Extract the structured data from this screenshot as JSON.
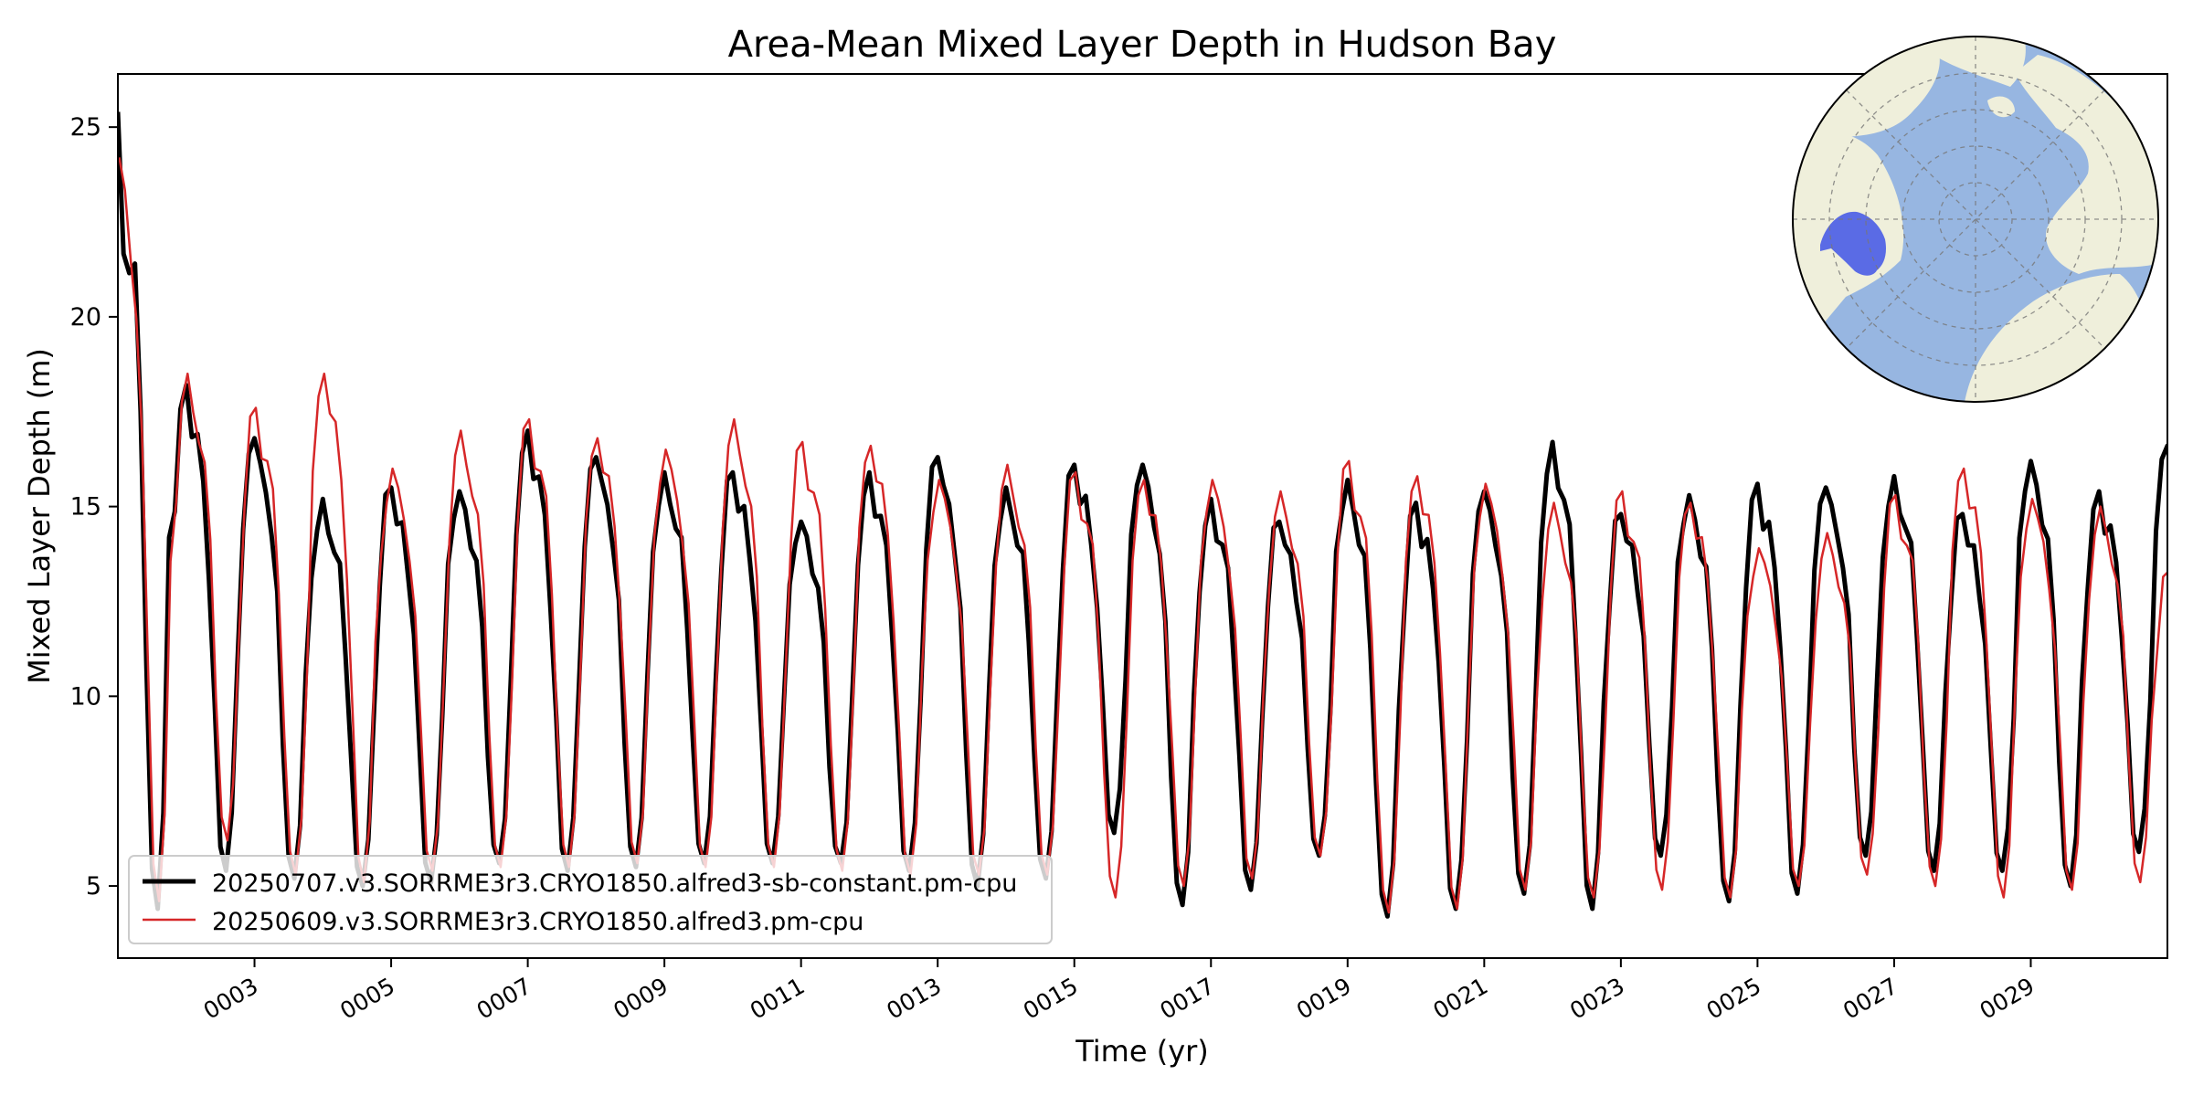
{
  "chart_data": {
    "type": "line",
    "title": "Area-Mean Mixed Layer Depth in Hudson Bay",
    "xlabel": "Time (yr)",
    "ylabel": "Mixed Layer Depth (m)",
    "xlim": [
      1,
      31
    ],
    "ylim": [
      3.1,
      26.4
    ],
    "x_ticks": [
      3,
      5,
      7,
      9,
      11,
      13,
      15,
      17,
      19,
      21,
      23,
      25,
      27,
      29
    ],
    "x_tick_labels": [
      "0003",
      "0005",
      "0007",
      "0009",
      "0011",
      "0013",
      "0015",
      "0017",
      "0019",
      "0021",
      "0023",
      "0025",
      "0027",
      "0029"
    ],
    "y_ticks": [
      5,
      10,
      15,
      20,
      25
    ],
    "y_tick_labels": [
      "5",
      "10",
      "15",
      "20",
      "25"
    ],
    "grid": false,
    "legend_position": "lower-left",
    "inset": {
      "type": "map",
      "projection": "north-polar-stereographic",
      "highlighted_region": "Hudson Bay"
    },
    "series": [
      {
        "name": "20250707.v3.SORRME3r3.CRYO1850.alfred3-sb-constant.pm-cpu",
        "color": "#000000",
        "line_width": "thick",
        "annual_cycles": [
          {
            "year": 1,
            "peak": 25.4,
            "trough": 4.4
          },
          {
            "year": 2,
            "peak": 18.2,
            "trough": 5.4
          },
          {
            "year": 3,
            "peak": 16.8,
            "trough": 5.2
          },
          {
            "year": 4,
            "peak": 15.2,
            "trough": 5.0
          },
          {
            "year": 5,
            "peak": 15.5,
            "trough": 5.1
          },
          {
            "year": 6,
            "peak": 15.4,
            "trough": 5.6
          },
          {
            "year": 7,
            "peak": 17.0,
            "trough": 5.4
          },
          {
            "year": 8,
            "peak": 16.3,
            "trough": 5.5
          },
          {
            "year": 9,
            "peak": 15.9,
            "trough": 5.6
          },
          {
            "year": 10,
            "peak": 15.9,
            "trough": 5.6
          },
          {
            "year": 11,
            "peak": 14.6,
            "trough": 5.6
          },
          {
            "year": 12,
            "peak": 15.9,
            "trough": 5.4
          },
          {
            "year": 13,
            "peak": 16.3,
            "trough": 5.0
          },
          {
            "year": 14,
            "peak": 15.5,
            "trough": 5.2
          },
          {
            "year": 15,
            "peak": 16.1,
            "trough": 6.4
          },
          {
            "year": 16,
            "peak": 16.1,
            "trough": 4.5
          },
          {
            "year": 17,
            "peak": 15.2,
            "trough": 4.9
          },
          {
            "year": 18,
            "peak": 14.6,
            "trough": 5.8
          },
          {
            "year": 19,
            "peak": 15.7,
            "trough": 4.2
          },
          {
            "year": 20,
            "peak": 15.1,
            "trough": 4.4
          },
          {
            "year": 21,
            "peak": 15.4,
            "trough": 4.8
          },
          {
            "year": 22,
            "peak": 16.7,
            "trough": 4.4
          },
          {
            "year": 23,
            "peak": 14.8,
            "trough": 5.8
          },
          {
            "year": 24,
            "peak": 15.3,
            "trough": 4.6
          },
          {
            "year": 25,
            "peak": 15.6,
            "trough": 4.8
          },
          {
            "year": 26,
            "peak": 15.5,
            "trough": 5.8
          },
          {
            "year": 27,
            "peak": 15.8,
            "trough": 5.4
          },
          {
            "year": 28,
            "peak": 14.8,
            "trough": 5.4
          },
          {
            "year": 29,
            "peak": 16.2,
            "trough": 5.0
          },
          {
            "year": 30,
            "peak": 15.4,
            "trough": 5.9
          },
          {
            "year": 31,
            "peak": 16.6,
            "trough": 5.9
          }
        ]
      },
      {
        "name": "20250609.v3.SORRME3r3.CRYO1850.alfred3.pm-cpu",
        "color": "#d62728",
        "line_width": "thin",
        "annual_cycles": [
          {
            "year": 1,
            "peak": 24.2,
            "trough": 4.6
          },
          {
            "year": 2,
            "peak": 18.5,
            "trough": 6.2
          },
          {
            "year": 3,
            "peak": 17.6,
            "trough": 5.3
          },
          {
            "year": 4,
            "peak": 18.5,
            "trough": 5.1
          },
          {
            "year": 5,
            "peak": 16.0,
            "trough": 5.4
          },
          {
            "year": 6,
            "peak": 17.0,
            "trough": 5.5
          },
          {
            "year": 7,
            "peak": 17.3,
            "trough": 5.5
          },
          {
            "year": 8,
            "peak": 16.8,
            "trough": 5.6
          },
          {
            "year": 9,
            "peak": 16.5,
            "trough": 5.5
          },
          {
            "year": 10,
            "peak": 17.3,
            "trough": 5.5
          },
          {
            "year": 11,
            "peak": 16.7,
            "trough": 5.4
          },
          {
            "year": 12,
            "peak": 16.6,
            "trough": 5.3
          },
          {
            "year": 13,
            "peak": 15.7,
            "trough": 5.3
          },
          {
            "year": 14,
            "peak": 16.1,
            "trough": 5.3
          },
          {
            "year": 15,
            "peak": 15.9,
            "trough": 4.7
          },
          {
            "year": 16,
            "peak": 15.7,
            "trough": 5.0
          },
          {
            "year": 17,
            "peak": 15.7,
            "trough": 5.2
          },
          {
            "year": 18,
            "peak": 15.4,
            "trough": 5.8
          },
          {
            "year": 19,
            "peak": 16.2,
            "trough": 4.3
          },
          {
            "year": 20,
            "peak": 15.8,
            "trough": 4.4
          },
          {
            "year": 21,
            "peak": 15.6,
            "trough": 4.9
          },
          {
            "year": 22,
            "peak": 15.1,
            "trough": 4.7
          },
          {
            "year": 23,
            "peak": 15.4,
            "trough": 4.9
          },
          {
            "year": 24,
            "peak": 15.1,
            "trough": 4.7
          },
          {
            "year": 25,
            "peak": 13.9,
            "trough": 5.0
          },
          {
            "year": 26,
            "peak": 14.3,
            "trough": 5.3
          },
          {
            "year": 27,
            "peak": 15.3,
            "trough": 5.0
          },
          {
            "year": 28,
            "peak": 16.0,
            "trough": 4.7
          },
          {
            "year": 29,
            "peak": 15.2,
            "trough": 4.9
          },
          {
            "year": 30,
            "peak": 15.0,
            "trough": 5.1
          },
          {
            "year": 31,
            "peak": 13.3,
            "trough": 5.1
          }
        ]
      }
    ]
  }
}
